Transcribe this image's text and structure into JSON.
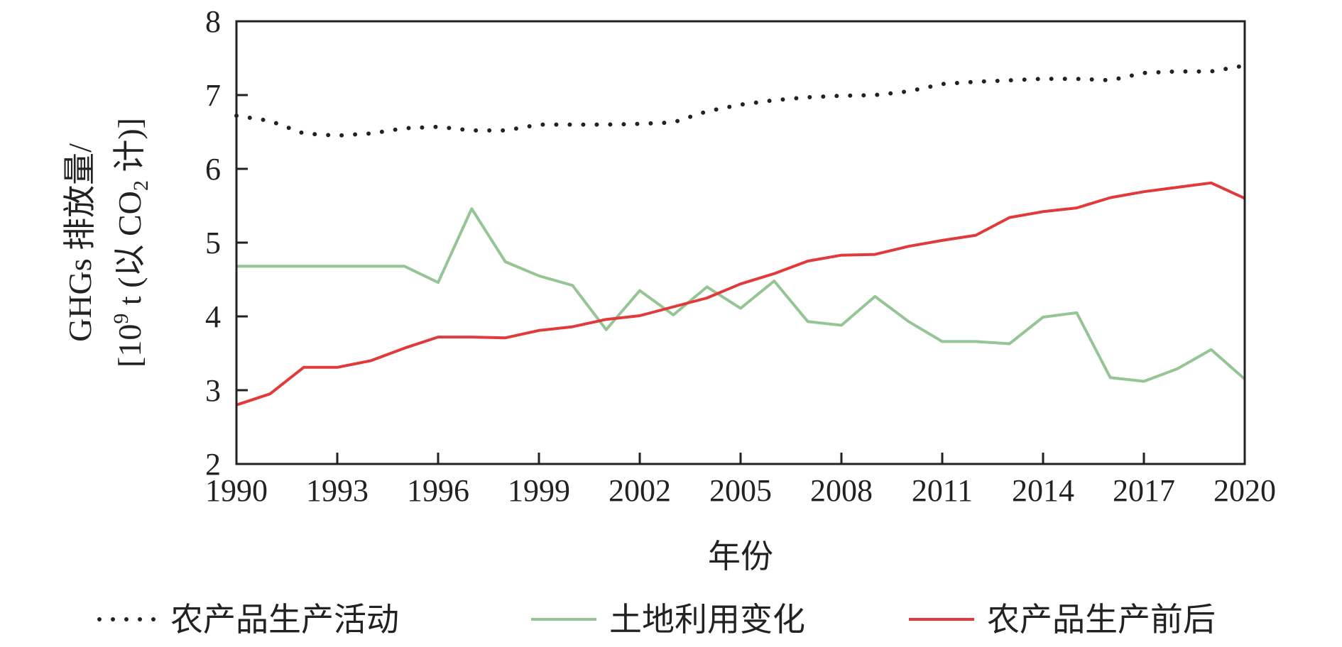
{
  "chart_data": {
    "type": "line",
    "title": "",
    "xlabel": "年份",
    "ylabel_line1": "GHGs 排放量/",
    "ylabel_line2": {
      "part1": "[10",
      "sup": "9",
      "part2": " t (以 CO",
      "sub": "2",
      "part3": " 计)]"
    },
    "xlim": [
      1990,
      2020
    ],
    "ylim": [
      2,
      8
    ],
    "xticks": [
      "1990",
      "1993",
      "1996",
      "1999",
      "2002",
      "2005",
      "2008",
      "2011",
      "2014",
      "2017",
      "2020"
    ],
    "yticks": [
      "2",
      "3",
      "4",
      "5",
      "6",
      "7",
      "8"
    ],
    "grid": false,
    "legend_position": "bottom",
    "x": [
      1990,
      1991,
      1992,
      1993,
      1994,
      1995,
      1996,
      1997,
      1998,
      1999,
      2000,
      2001,
      2002,
      2003,
      2004,
      2005,
      2006,
      2007,
      2008,
      2009,
      2010,
      2011,
      2012,
      2013,
      2014,
      2015,
      2016,
      2017,
      2018,
      2019,
      2020
    ],
    "series": [
      {
        "name": "农产品生产活动",
        "style": "dotted",
        "color": "#222222",
        "values": [
          6.72,
          6.65,
          6.48,
          6.45,
          6.48,
          6.55,
          6.57,
          6.52,
          6.52,
          6.6,
          6.6,
          6.6,
          6.61,
          6.63,
          6.78,
          6.87,
          6.93,
          6.97,
          6.99,
          7.0,
          7.05,
          7.15,
          7.18,
          7.2,
          7.22,
          7.22,
          7.2,
          7.3,
          7.32,
          7.32,
          7.4
        ]
      },
      {
        "name": "土地利用变化",
        "style": "solid",
        "color": "#95c594",
        "values": [
          4.68,
          4.68,
          4.68,
          4.68,
          4.68,
          4.68,
          4.46,
          5.46,
          4.74,
          4.55,
          4.42,
          3.82,
          4.35,
          4.02,
          4.4,
          4.11,
          4.48,
          3.93,
          3.88,
          4.27,
          3.93,
          3.66,
          3.66,
          3.63,
          3.99,
          4.05,
          3.17,
          3.12,
          3.29,
          3.55,
          3.15
        ]
      },
      {
        "name": "农产品生产前后",
        "style": "solid",
        "color": "#e03a3a",
        "values": [
          2.8,
          2.95,
          3.31,
          3.31,
          3.4,
          3.57,
          3.72,
          3.72,
          3.71,
          3.81,
          3.86,
          3.96,
          4.01,
          4.13,
          4.25,
          4.44,
          4.58,
          4.75,
          4.83,
          4.84,
          4.95,
          5.03,
          5.1,
          5.34,
          5.42,
          5.47,
          5.61,
          5.69,
          5.75,
          5.81,
          5.6
        ]
      }
    ]
  }
}
